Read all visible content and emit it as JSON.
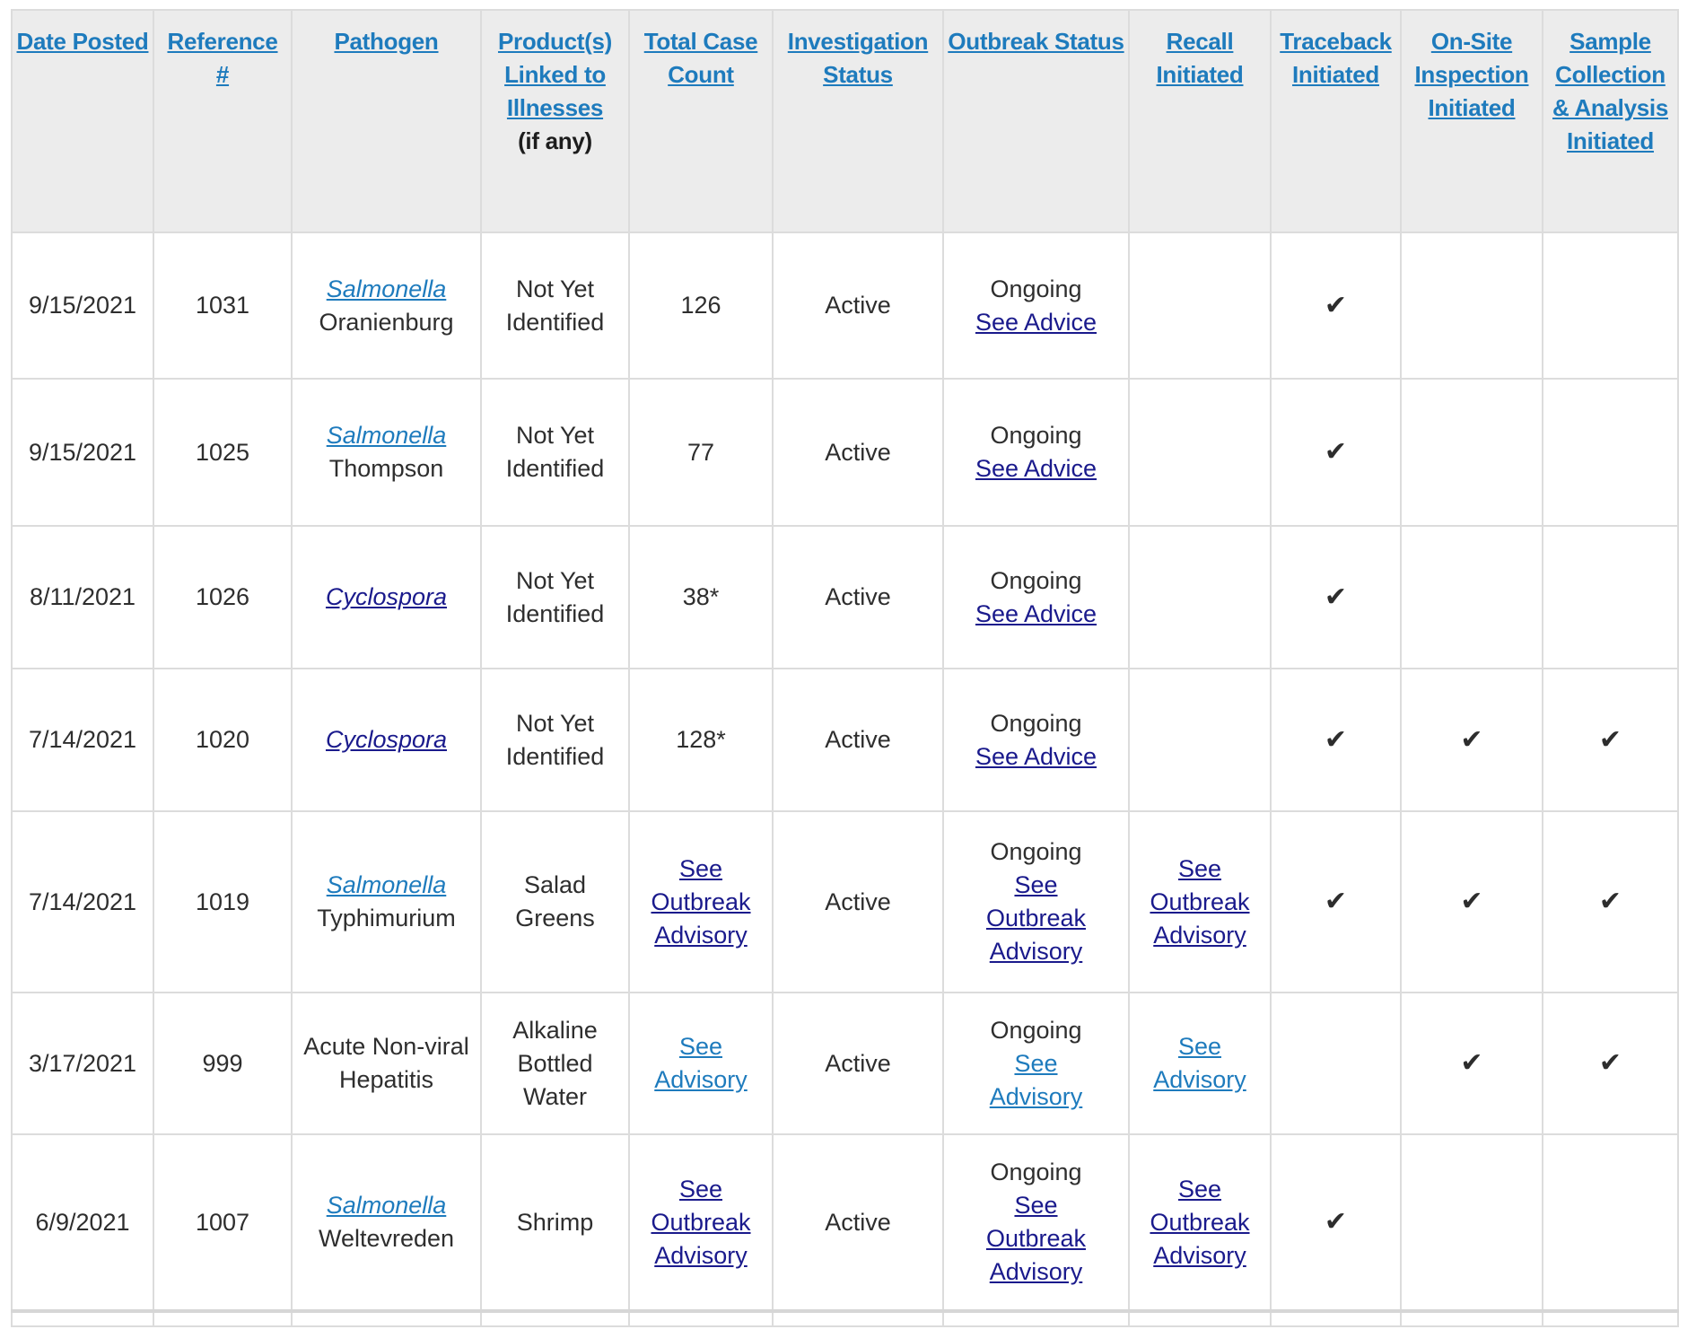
{
  "theme": {
    "colors": {
      "header_bg": "#ececec",
      "header_link": "#1e7bbd",
      "link_blue": "#1e7bbd",
      "link_navy": "#1a1a8c",
      "border": "#dcdcdc",
      "text": "#2e2e2e",
      "check": "#2d2d2d"
    }
  },
  "table": {
    "checkmark_glyph": "✔",
    "columns": [
      {
        "id": "date_posted",
        "label": "Date Posted",
        "sortable": true
      },
      {
        "id": "reference",
        "label": "Reference #",
        "sortable": true
      },
      {
        "id": "pathogen",
        "label": "Pathogen",
        "sortable": true
      },
      {
        "id": "product",
        "label": "Product(s) Linked to Illnesses",
        "sublabel": "(if any)",
        "sortable": true
      },
      {
        "id": "case_count",
        "label": "Total Case Count",
        "sortable": true
      },
      {
        "id": "investigation_status",
        "label": "Investigation Status",
        "sortable": true
      },
      {
        "id": "outbreak_status",
        "label": "Outbreak Status",
        "sortable": true
      },
      {
        "id": "recall",
        "label": "Recall Initiated",
        "sortable": true
      },
      {
        "id": "traceback",
        "label": "Traceback Initiated",
        "sortable": true
      },
      {
        "id": "onsite",
        "label": "On-Site Inspection Initiated",
        "sortable": true
      },
      {
        "id": "sample",
        "label": "Sample Collection & Analysis Initiated",
        "sortable": true
      }
    ],
    "rows": [
      {
        "date_posted": "9/15/2021",
        "reference": "1031",
        "pathogen": {
          "link": "Salmonella",
          "link_style": "blue",
          "rest": "Oranienburg"
        },
        "product": "Not Yet Identified",
        "case_count": {
          "text": "126"
        },
        "investigation_status": "Active",
        "outbreak_status": {
          "prefix": "Ongoing",
          "link": "See Advice",
          "link_style": "navy"
        },
        "recall": null,
        "traceback": true,
        "onsite": false,
        "sample": false
      },
      {
        "date_posted": "9/15/2021",
        "reference": "1025",
        "pathogen": {
          "link": "Salmonella",
          "link_style": "blue",
          "rest": "Thompson"
        },
        "product": "Not Yet Identified",
        "case_count": {
          "text": "77"
        },
        "investigation_status": "Active",
        "outbreak_status": {
          "prefix": "Ongoing",
          "link": "See Advice",
          "link_style": "navy"
        },
        "recall": null,
        "traceback": true,
        "onsite": false,
        "sample": false
      },
      {
        "date_posted": "8/11/2021",
        "reference": "1026",
        "pathogen": {
          "link": "Cyclospora",
          "link_style": "navy",
          "rest": null
        },
        "product": "Not Yet Identified",
        "case_count": {
          "text": "38*"
        },
        "investigation_status": "Active",
        "outbreak_status": {
          "prefix": "Ongoing",
          "link": "See Advice",
          "link_style": "navy"
        },
        "recall": null,
        "traceback": true,
        "onsite": false,
        "sample": false
      },
      {
        "date_posted": "7/14/2021",
        "reference": "1020",
        "pathogen": {
          "link": "Cyclospora",
          "link_style": "navy",
          "rest": null
        },
        "product": "Not Yet Identified",
        "case_count": {
          "text": "128*"
        },
        "investigation_status": "Active",
        "outbreak_status": {
          "prefix": "Ongoing",
          "link": "See Advice",
          "link_style": "navy"
        },
        "recall": null,
        "traceback": true,
        "onsite": true,
        "sample": true
      },
      {
        "date_posted": "7/14/2021",
        "reference": "1019",
        "pathogen": {
          "link": "Salmonella",
          "link_style": "blue",
          "rest": "Typhimurium"
        },
        "product": "Salad Greens",
        "case_count": {
          "link": "See Outbreak Advisory",
          "link_style": "navy"
        },
        "investigation_status": "Active",
        "outbreak_status": {
          "prefix": "Ongoing",
          "link": "See Outbreak Advisory",
          "link_style": "navy"
        },
        "recall": {
          "link": "See Outbreak Advisory",
          "link_style": "navy"
        },
        "traceback": true,
        "onsite": true,
        "sample": true
      },
      {
        "date_posted": "3/17/2021",
        "reference": "999",
        "pathogen": {
          "text": "Acute Non-viral Hepatitis"
        },
        "product": "Alkaline Bottled Water",
        "case_count": {
          "link": "See Advisory",
          "link_style": "blue"
        },
        "investigation_status": "Active",
        "outbreak_status": {
          "prefix": "Ongoing",
          "link": "See Advisory",
          "link_style": "blue"
        },
        "recall": {
          "link": "See Advisory",
          "link_style": "blue"
        },
        "traceback": false,
        "onsite": true,
        "sample": true
      },
      {
        "date_posted": "6/9/2021",
        "reference": "1007",
        "pathogen": {
          "link": "Salmonella",
          "link_style": "blue",
          "rest": "Weltevreden"
        },
        "product": "Shrimp",
        "case_count": {
          "link": "See Outbreak Advisory",
          "link_style": "navy"
        },
        "investigation_status": "Active",
        "outbreak_status": {
          "prefix": "Ongoing",
          "link": "See Outbreak Advisory",
          "link_style": "navy"
        },
        "recall": {
          "link": "See Outbreak Advisory",
          "link_style": "navy"
        },
        "traceback": true,
        "onsite": false,
        "sample": false
      }
    ]
  }
}
